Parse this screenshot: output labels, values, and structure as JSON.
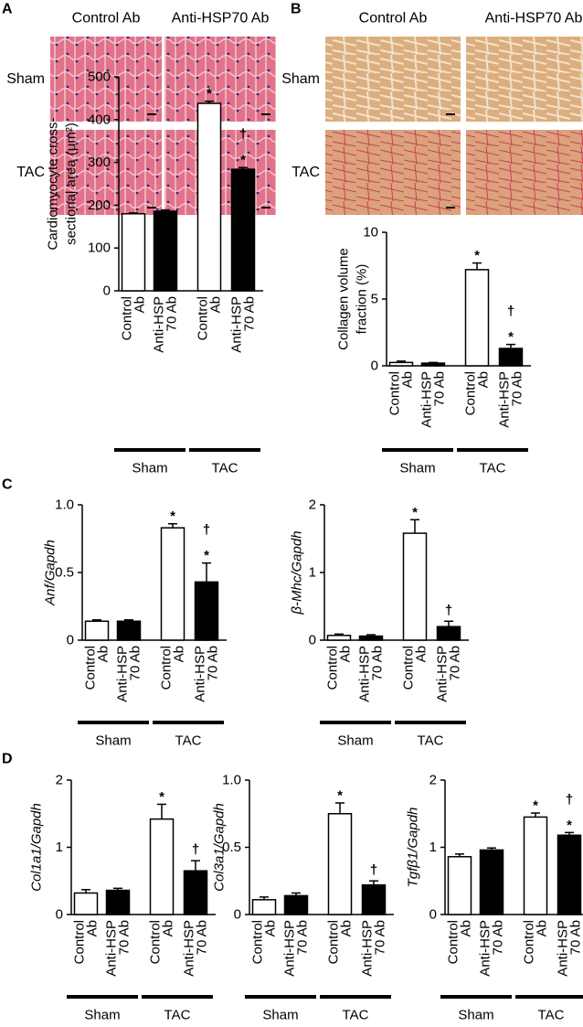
{
  "chart_data": [
    {
      "type": "bar",
      "panel": "A",
      "image_columns": [
        "Control Ab",
        "Anti-HSP70 Ab"
      ],
      "image_rows": [
        "Sham",
        "TAC"
      ],
      "ylabel": [
        "Cardiomyocyte cross-",
        "sectional area (μm²)"
      ],
      "ylabel_italic": false,
      "categories": [
        [
          "Control",
          "Ab"
        ],
        [
          "Anti-HSP",
          "70 Ab"
        ],
        [
          "Control",
          "Ab"
        ],
        [
          "Anti-HSP",
          "70 Ab"
        ]
      ],
      "groups": [
        "Sham",
        "TAC"
      ],
      "values": [
        180,
        186,
        438,
        284
      ],
      "errors": [
        2,
        3,
        5,
        4
      ],
      "colors": [
        "#ffffff",
        "#000000",
        "#ffffff",
        "#000000"
      ],
      "annotations": [
        {
          "index": 2,
          "labels": [
            "*"
          ]
        },
        {
          "index": 3,
          "labels": [
            "†",
            "*"
          ]
        }
      ],
      "ylim": [
        0,
        500
      ],
      "yticks": [
        0,
        100,
        200,
        300,
        400,
        500
      ]
    },
    {
      "type": "bar",
      "panel": "B",
      "image_columns": [
        "Control Ab",
        "Anti-HSP70 Ab"
      ],
      "image_rows": [
        "Sham",
        "TAC"
      ],
      "ylabel": [
        "Collagen volume",
        "fraction (%)"
      ],
      "ylabel_italic": false,
      "categories": [
        [
          "Control",
          "Ab"
        ],
        [
          "Anti-HSP",
          "70 Ab"
        ],
        [
          "Control",
          "Ab"
        ],
        [
          "Anti-HSP",
          "70 Ab"
        ]
      ],
      "groups": [
        "Sham",
        "TAC"
      ],
      "values": [
        0.25,
        0.2,
        7.2,
        1.3
      ],
      "errors": [
        0.1,
        0.05,
        0.5,
        0.3
      ],
      "colors": [
        "#ffffff",
        "#000000",
        "#ffffff",
        "#000000"
      ],
      "annotations": [
        {
          "index": 2,
          "labels": [
            "*"
          ]
        },
        {
          "index": 3,
          "labels": [
            "†",
            "*"
          ]
        }
      ],
      "ylim": [
        0,
        10
      ],
      "yticks": [
        0,
        5,
        10
      ]
    },
    {
      "type": "bar",
      "panel": "C",
      "ylabel": [
        "Anf/Gapdh"
      ],
      "ylabel_italic": true,
      "categories": [
        [
          "Control",
          "Ab"
        ],
        [
          "Anti-HSP",
          "70 Ab"
        ],
        [
          "Control",
          "Ab"
        ],
        [
          "Anti-HSP",
          "70 Ab"
        ]
      ],
      "groups": [
        "Sham",
        "TAC"
      ],
      "values": [
        0.14,
        0.14,
        0.83,
        0.43
      ],
      "errors": [
        0.01,
        0.01,
        0.03,
        0.14
      ],
      "colors": [
        "#ffffff",
        "#000000",
        "#ffffff",
        "#000000"
      ],
      "annotations": [
        {
          "index": 2,
          "labels": [
            "*"
          ]
        },
        {
          "index": 3,
          "labels": [
            "†",
            "*"
          ]
        }
      ],
      "ylim": [
        0,
        1
      ],
      "yticks": [
        0,
        0.5,
        {
          "value": 1,
          "label": "1.0"
        }
      ]
    },
    {
      "type": "bar",
      "ylabel": [
        "β-Mhc/Gapdh"
      ],
      "ylabel_italic": true,
      "categories": [
        [
          "Control",
          "Ab"
        ],
        [
          "Anti-HSP",
          "70 Ab"
        ],
        [
          "Control",
          "Ab"
        ],
        [
          "Anti-HSP",
          "70 Ab"
        ]
      ],
      "groups": [
        "Sham",
        "TAC"
      ],
      "values": [
        0.07,
        0.06,
        1.58,
        0.2
      ],
      "errors": [
        0.02,
        0.02,
        0.2,
        0.08
      ],
      "colors": [
        "#ffffff",
        "#000000",
        "#ffffff",
        "#000000"
      ],
      "annotations": [
        {
          "index": 2,
          "labels": [
            "*"
          ]
        },
        {
          "index": 3,
          "labels": [
            "†"
          ]
        }
      ],
      "ylim": [
        0,
        2
      ],
      "yticks": [
        0,
        1,
        2
      ]
    },
    {
      "type": "bar",
      "panel": "D",
      "ylabel": [
        "Col1a1/Gapdh"
      ],
      "ylabel_italic": true,
      "categories": [
        [
          "Control",
          "Ab"
        ],
        [
          "Anti-HSP",
          "70 Ab"
        ],
        [
          "Control",
          "Ab"
        ],
        [
          "Anti-HSP",
          "70 Ab"
        ]
      ],
      "groups": [
        "Sham",
        "TAC"
      ],
      "values": [
        0.32,
        0.36,
        1.42,
        0.65
      ],
      "errors": [
        0.05,
        0.03,
        0.22,
        0.15
      ],
      "colors": [
        "#ffffff",
        "#000000",
        "#ffffff",
        "#000000"
      ],
      "annotations": [
        {
          "index": 2,
          "labels": [
            "*"
          ]
        },
        {
          "index": 3,
          "labels": [
            "†"
          ]
        }
      ],
      "ylim": [
        0,
        2
      ],
      "yticks": [
        0,
        1,
        2
      ]
    },
    {
      "type": "bar",
      "ylabel": [
        "Col3a1/Gapdh"
      ],
      "ylabel_italic": true,
      "categories": [
        [
          "Control",
          "Ab"
        ],
        [
          "Anti-HSP",
          "70 Ab"
        ],
        [
          "Control",
          "Ab"
        ],
        [
          "Anti-HSP",
          "70 Ab"
        ]
      ],
      "groups": [
        "Sham",
        "TAC"
      ],
      "values": [
        0.11,
        0.14,
        0.75,
        0.22
      ],
      "errors": [
        0.02,
        0.02,
        0.08,
        0.03
      ],
      "colors": [
        "#ffffff",
        "#000000",
        "#ffffff",
        "#000000"
      ],
      "annotations": [
        {
          "index": 2,
          "labels": [
            "*"
          ]
        },
        {
          "index": 3,
          "labels": [
            "†"
          ]
        }
      ],
      "ylim": [
        0,
        1
      ],
      "yticks": [
        0,
        0.5,
        {
          "value": 1,
          "label": "1.0"
        }
      ]
    },
    {
      "type": "bar",
      "ylabel": [
        "Tgfβ1/Gapdh"
      ],
      "ylabel_italic": true,
      "categories": [
        [
          "Control",
          "Ab"
        ],
        [
          "Anti-HSP",
          "70 Ab"
        ],
        [
          "Control",
          "Ab"
        ],
        [
          "Anti-HSP",
          "70 Ab"
        ]
      ],
      "groups": [
        "Sham",
        "TAC"
      ],
      "values": [
        0.86,
        0.96,
        1.45,
        1.18
      ],
      "errors": [
        0.04,
        0.03,
        0.06,
        0.04
      ],
      "colors": [
        "#ffffff",
        "#000000",
        "#ffffff",
        "#000000"
      ],
      "annotations": [
        {
          "index": 2,
          "labels": [
            "*"
          ]
        },
        {
          "index": 3,
          "labels": [
            "†",
            "*"
          ]
        }
      ],
      "ylim": [
        0,
        2
      ],
      "yticks": [
        0,
        1,
        2
      ]
    }
  ]
}
